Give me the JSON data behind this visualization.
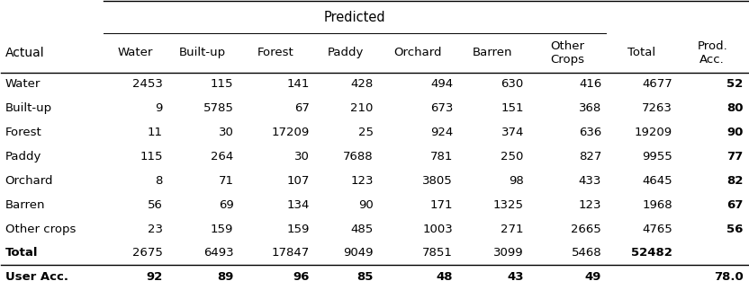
{
  "title": "Predicted",
  "col_headers": [
    "Water",
    "Built-up",
    "Forest",
    "Paddy",
    "Orchard",
    "Barren",
    "Other\nCrops",
    "Total",
    "Prod.\nAcc."
  ],
  "row_headers": [
    "Actual",
    "Water",
    "Built-up",
    "Forest",
    "Paddy",
    "Orchard",
    "Barren",
    "Other crops",
    "Total",
    "User Acc."
  ],
  "table_data": [
    [
      "2453",
      "115",
      "141",
      "428",
      "494",
      "630",
      "416",
      "4677",
      "52"
    ],
    [
      "9",
      "5785",
      "67",
      "210",
      "673",
      "151",
      "368",
      "7263",
      "80"
    ],
    [
      "11",
      "30",
      "17209",
      "25",
      "924",
      "374",
      "636",
      "19209",
      "90"
    ],
    [
      "115",
      "264",
      "30",
      "7688",
      "781",
      "250",
      "827",
      "9955",
      "77"
    ],
    [
      "8",
      "71",
      "107",
      "123",
      "3805",
      "98",
      "433",
      "4645",
      "82"
    ],
    [
      "56",
      "69",
      "134",
      "90",
      "171",
      "1325",
      "123",
      "1968",
      "67"
    ],
    [
      "23",
      "159",
      "159",
      "485",
      "1003",
      "271",
      "2665",
      "4765",
      "56"
    ],
    [
      "2675",
      "6493",
      "17847",
      "9049",
      "7851",
      "3099",
      "5468",
      "52482",
      ""
    ],
    [
      "92",
      "89",
      "96",
      "85",
      "48",
      "43",
      "49",
      "",
      "78.0"
    ]
  ],
  "highlight_color": "#d9d9d9",
  "font_size": 9.5,
  "header_font_size": 10
}
